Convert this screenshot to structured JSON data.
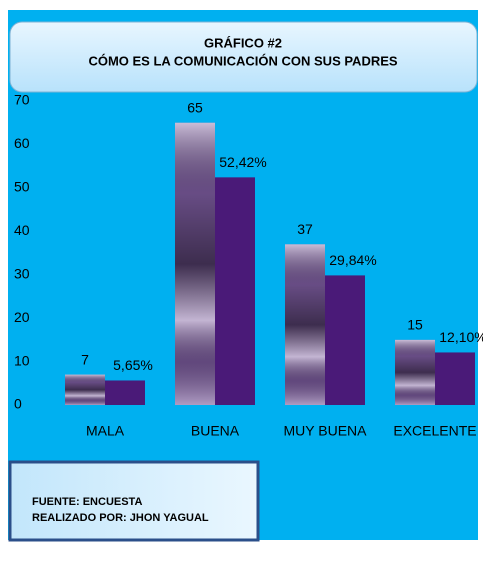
{
  "chart_data": {
    "type": "bar",
    "title": "GRÁFICO #2",
    "subtitle": "CÓMO ES LA COMUNICACIÓN CON SUS PADRES",
    "categories": [
      "MALA",
      "BUENA",
      "MUY BUENA",
      "EXCELENTE"
    ],
    "series": [
      {
        "color": "#7a5a9c",
        "values": [
          7,
          65,
          37,
          15
        ]
      },
      {
        "color": "#4a1a78",
        "values": [
          5.65,
          52.42,
          29.84,
          12.1
        ],
        "value_labels": [
          "5,65%",
          "52,42%",
          "29,84%",
          "12,10%"
        ]
      }
    ],
    "ylim": [
      0,
      70
    ],
    "yticks": [
      0,
      10,
      20,
      30,
      40,
      50,
      60,
      70
    ],
    "grid": false,
    "source": [
      "FUENTE: ENCUESTA",
      "REALIZADO POR:  JHON YAGUAL"
    ]
  }
}
